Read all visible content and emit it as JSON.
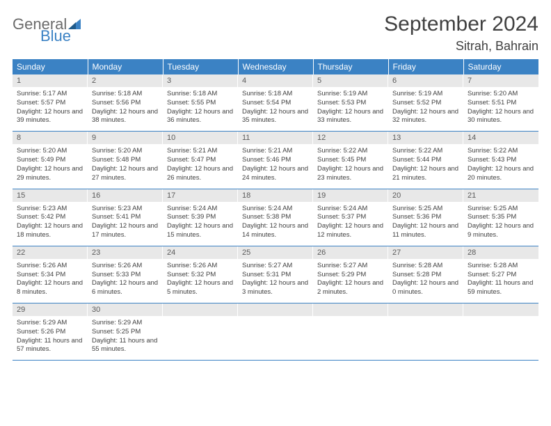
{
  "brand": {
    "line1": "General",
    "line2": "Blue"
  },
  "title": "September 2024",
  "location": "Sitrah, Bahrain",
  "colors": {
    "header_bg": "#3b82c4",
    "header_fg": "#ffffff",
    "daynum_bg": "#e8e8e8",
    "text": "#404040",
    "row_border": "#3b82c4"
  },
  "fonts": {
    "title_size": 30,
    "location_size": 18,
    "dow_size": 12,
    "daynum_size": 11,
    "body_size": 9.5
  },
  "days_of_week": [
    "Sunday",
    "Monday",
    "Tuesday",
    "Wednesday",
    "Thursday",
    "Friday",
    "Saturday"
  ],
  "weeks": [
    [
      {
        "n": "1",
        "sunrise": "5:17 AM",
        "sunset": "5:57 PM",
        "daylight": "12 hours and 39 minutes."
      },
      {
        "n": "2",
        "sunrise": "5:18 AM",
        "sunset": "5:56 PM",
        "daylight": "12 hours and 38 minutes."
      },
      {
        "n": "3",
        "sunrise": "5:18 AM",
        "sunset": "5:55 PM",
        "daylight": "12 hours and 36 minutes."
      },
      {
        "n": "4",
        "sunrise": "5:18 AM",
        "sunset": "5:54 PM",
        "daylight": "12 hours and 35 minutes."
      },
      {
        "n": "5",
        "sunrise": "5:19 AM",
        "sunset": "5:53 PM",
        "daylight": "12 hours and 33 minutes."
      },
      {
        "n": "6",
        "sunrise": "5:19 AM",
        "sunset": "5:52 PM",
        "daylight": "12 hours and 32 minutes."
      },
      {
        "n": "7",
        "sunrise": "5:20 AM",
        "sunset": "5:51 PM",
        "daylight": "12 hours and 30 minutes."
      }
    ],
    [
      {
        "n": "8",
        "sunrise": "5:20 AM",
        "sunset": "5:49 PM",
        "daylight": "12 hours and 29 minutes."
      },
      {
        "n": "9",
        "sunrise": "5:20 AM",
        "sunset": "5:48 PM",
        "daylight": "12 hours and 27 minutes."
      },
      {
        "n": "10",
        "sunrise": "5:21 AM",
        "sunset": "5:47 PM",
        "daylight": "12 hours and 26 minutes."
      },
      {
        "n": "11",
        "sunrise": "5:21 AM",
        "sunset": "5:46 PM",
        "daylight": "12 hours and 24 minutes."
      },
      {
        "n": "12",
        "sunrise": "5:22 AM",
        "sunset": "5:45 PM",
        "daylight": "12 hours and 23 minutes."
      },
      {
        "n": "13",
        "sunrise": "5:22 AM",
        "sunset": "5:44 PM",
        "daylight": "12 hours and 21 minutes."
      },
      {
        "n": "14",
        "sunrise": "5:22 AM",
        "sunset": "5:43 PM",
        "daylight": "12 hours and 20 minutes."
      }
    ],
    [
      {
        "n": "15",
        "sunrise": "5:23 AM",
        "sunset": "5:42 PM",
        "daylight": "12 hours and 18 minutes."
      },
      {
        "n": "16",
        "sunrise": "5:23 AM",
        "sunset": "5:41 PM",
        "daylight": "12 hours and 17 minutes."
      },
      {
        "n": "17",
        "sunrise": "5:24 AM",
        "sunset": "5:39 PM",
        "daylight": "12 hours and 15 minutes."
      },
      {
        "n": "18",
        "sunrise": "5:24 AM",
        "sunset": "5:38 PM",
        "daylight": "12 hours and 14 minutes."
      },
      {
        "n": "19",
        "sunrise": "5:24 AM",
        "sunset": "5:37 PM",
        "daylight": "12 hours and 12 minutes."
      },
      {
        "n": "20",
        "sunrise": "5:25 AM",
        "sunset": "5:36 PM",
        "daylight": "12 hours and 11 minutes."
      },
      {
        "n": "21",
        "sunrise": "5:25 AM",
        "sunset": "5:35 PM",
        "daylight": "12 hours and 9 minutes."
      }
    ],
    [
      {
        "n": "22",
        "sunrise": "5:26 AM",
        "sunset": "5:34 PM",
        "daylight": "12 hours and 8 minutes."
      },
      {
        "n": "23",
        "sunrise": "5:26 AM",
        "sunset": "5:33 PM",
        "daylight": "12 hours and 6 minutes."
      },
      {
        "n": "24",
        "sunrise": "5:26 AM",
        "sunset": "5:32 PM",
        "daylight": "12 hours and 5 minutes."
      },
      {
        "n": "25",
        "sunrise": "5:27 AM",
        "sunset": "5:31 PM",
        "daylight": "12 hours and 3 minutes."
      },
      {
        "n": "26",
        "sunrise": "5:27 AM",
        "sunset": "5:29 PM",
        "daylight": "12 hours and 2 minutes."
      },
      {
        "n": "27",
        "sunrise": "5:28 AM",
        "sunset": "5:28 PM",
        "daylight": "12 hours and 0 minutes."
      },
      {
        "n": "28",
        "sunrise": "5:28 AM",
        "sunset": "5:27 PM",
        "daylight": "11 hours and 59 minutes."
      }
    ],
    [
      {
        "n": "29",
        "sunrise": "5:29 AM",
        "sunset": "5:26 PM",
        "daylight": "11 hours and 57 minutes."
      },
      {
        "n": "30",
        "sunrise": "5:29 AM",
        "sunset": "5:25 PM",
        "daylight": "11 hours and 55 minutes."
      },
      null,
      null,
      null,
      null,
      null
    ]
  ],
  "labels": {
    "sunrise": "Sunrise:",
    "sunset": "Sunset:",
    "daylight": "Daylight:"
  }
}
